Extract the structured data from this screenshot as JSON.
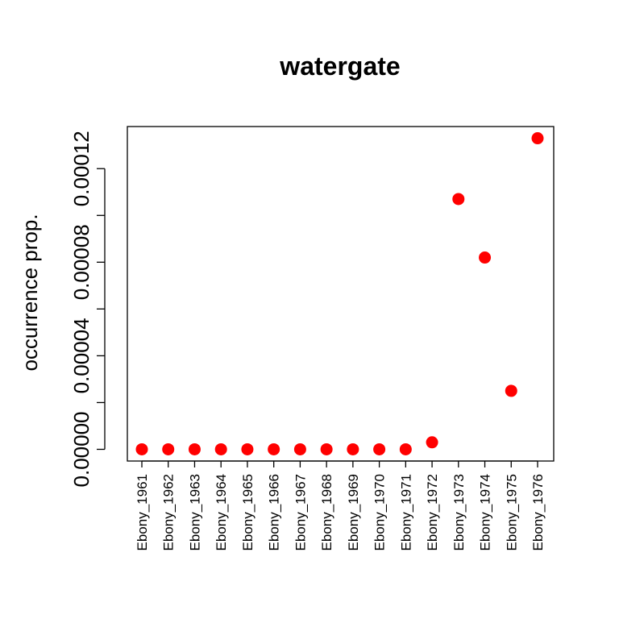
{
  "chart_data": {
    "type": "scatter",
    "title": "watergate",
    "xlabel": "",
    "ylabel": "occurrence prop.",
    "categories": [
      "Ebony_1961",
      "Ebony_1962",
      "Ebony_1963",
      "Ebony_1964",
      "Ebony_1965",
      "Ebony_1966",
      "Ebony_1967",
      "Ebony_1968",
      "Ebony_1969",
      "Ebony_1970",
      "Ebony_1971",
      "Ebony_1972",
      "Ebony_1973",
      "Ebony_1974",
      "Ebony_1975",
      "Ebony_1976"
    ],
    "values": [
      0,
      0,
      0,
      0,
      0,
      0,
      0,
      0,
      0,
      0,
      0,
      3e-06,
      0.000107,
      8.2e-05,
      2.5e-05,
      0.000133
    ],
    "ylim": [
      -5e-06,
      0.000138
    ],
    "yticks": [
      0,
      2e-05,
      4e-05,
      6e-05,
      8e-05,
      0.0001,
      0.00012
    ],
    "ytick_labels": [
      "0.00000",
      "",
      "0.00004",
      "",
      "0.00008",
      "",
      "0.00012"
    ],
    "point_color": "#ff0000",
    "grid": false,
    "legend": "none"
  }
}
